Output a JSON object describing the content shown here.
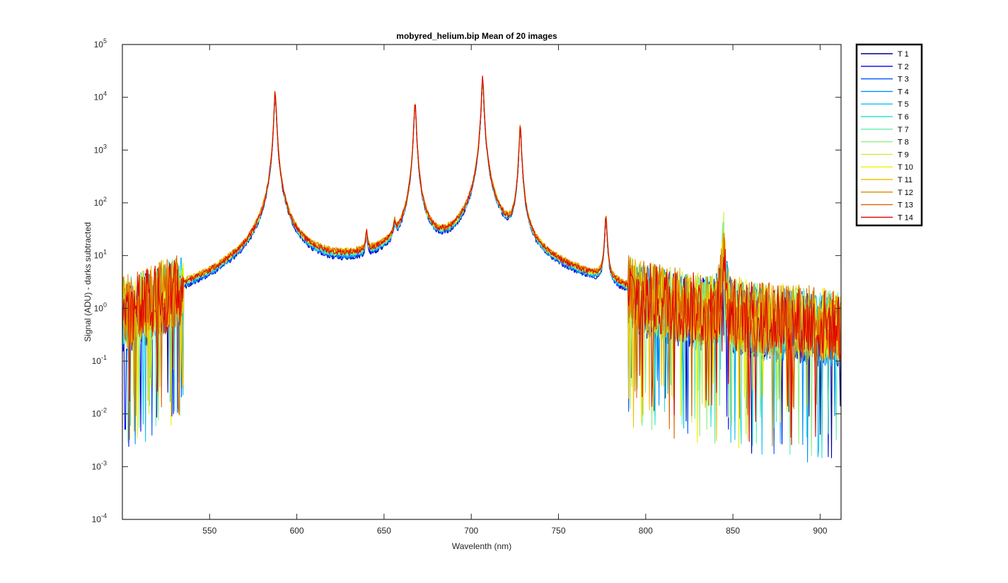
{
  "chart_data": {
    "type": "line",
    "title": "mobyred_helium.bip  Mean of 20 images",
    "xlabel": "Wavelenth (nm)",
    "ylabel": "Signal (ADU) - darks subtracted",
    "xlim": [
      500,
      912
    ],
    "ylim": [
      0.0001,
      100000
    ],
    "yscale": "log",
    "grid": false,
    "legend_position": "outside-top-right",
    "x_ticks": [
      550,
      600,
      650,
      700,
      750,
      800,
      850,
      900
    ],
    "y_ticks": [
      {
        "value": 0.0001,
        "base": "10",
        "exp": "-4"
      },
      {
        "value": 0.001,
        "base": "10",
        "exp": "-3"
      },
      {
        "value": 0.01,
        "base": "10",
        "exp": "-2"
      },
      {
        "value": 0.1,
        "base": "10",
        "exp": "-1"
      },
      {
        "value": 1,
        "base": "10",
        "exp": "0"
      },
      {
        "value": 10,
        "base": "10",
        "exp": "1"
      },
      {
        "value": 100,
        "base": "10",
        "exp": "2"
      },
      {
        "value": 1000,
        "base": "10",
        "exp": "3"
      },
      {
        "value": 10000,
        "base": "10",
        "exp": "4"
      },
      {
        "value": 100000,
        "base": "10",
        "exp": "5"
      }
    ],
    "peaks": [
      {
        "x": 587.6,
        "y": 12000
      },
      {
        "x": 640.0,
        "y": 15
      },
      {
        "x": 656.0,
        "y": 18
      },
      {
        "x": 667.8,
        "y": 7500
      },
      {
        "x": 706.5,
        "y": 22000
      },
      {
        "x": 728.1,
        "y": 2800
      },
      {
        "x": 777.2,
        "y": 50
      },
      {
        "x": 844.6,
        "y": 18
      }
    ],
    "continuum": {
      "x": [
        500,
        525,
        550,
        570,
        580,
        600,
        620,
        640,
        660,
        680,
        690,
        700,
        720,
        740,
        760,
        780,
        800,
        850,
        912
      ],
      "y": [
        0.3,
        1.0,
        2.2,
        5.0,
        10,
        8,
        6.5,
        7,
        9,
        9.5,
        11,
        17,
        8,
        4,
        2.5,
        1.6,
        0.9,
        0.45,
        0.35
      ]
    },
    "series": [
      {
        "name": "T 1",
        "color": "#00008F",
        "scale": 0.7
      },
      {
        "name": "T 2",
        "color": "#0000EF",
        "scale": 0.72
      },
      {
        "name": "T 3",
        "color": "#0050FF",
        "scale": 0.76
      },
      {
        "name": "T 4",
        "color": "#0090FF",
        "scale": 0.8
      },
      {
        "name": "T 5",
        "color": "#10C0F0",
        "scale": 0.84
      },
      {
        "name": "T 6",
        "color": "#30E0D0",
        "scale": 0.88
      },
      {
        "name": "T 7",
        "color": "#60F0B0",
        "scale": 0.92
      },
      {
        "name": "T 8",
        "color": "#90F080",
        "scale": 0.96
      },
      {
        "name": "T 9",
        "color": "#C8F040",
        "scale": 1.0
      },
      {
        "name": "T 10",
        "color": "#F0F000",
        "scale": 1.06
      },
      {
        "name": "T 11",
        "color": "#F0C000",
        "scale": 1.12
      },
      {
        "name": "T 12",
        "color": "#D09000",
        "scale": 1.1
      },
      {
        "name": "T 13",
        "color": "#E06000",
        "scale": 1.04
      },
      {
        "name": "T 14",
        "color": "#E00000",
        "scale": 0.98
      }
    ]
  }
}
